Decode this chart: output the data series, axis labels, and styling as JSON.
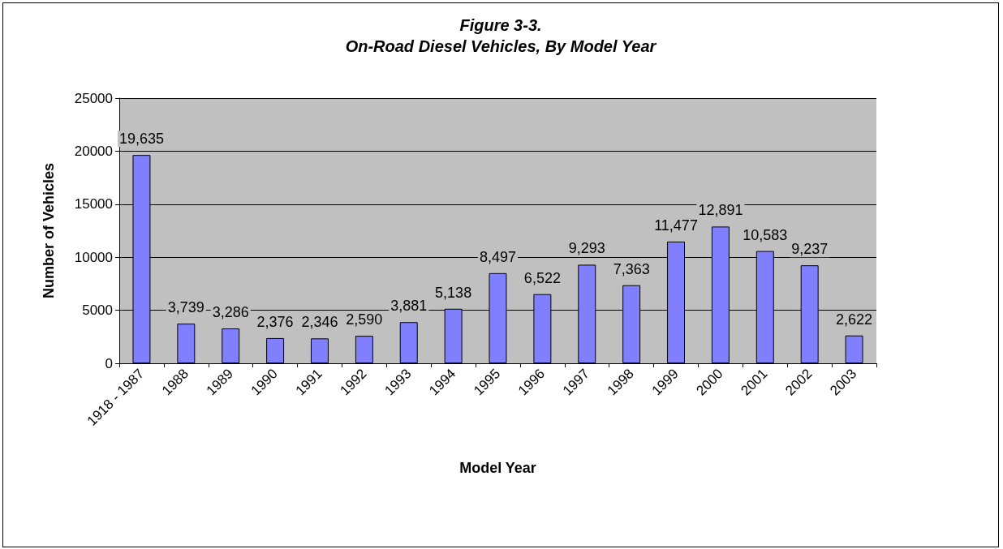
{
  "chart_data": {
    "type": "bar",
    "title": "Figure 3-3.",
    "subtitle": "On-Road Diesel Vehicles, By Model Year",
    "xlabel": "Model Year",
    "ylabel": "Number of Vehicles",
    "categories": [
      "1918 - 1987",
      "1988",
      "1989",
      "1990",
      "1991",
      "1992",
      "1993",
      "1994",
      "1995",
      "1996",
      "1997",
      "1998",
      "1999",
      "2000",
      "2001",
      "2002",
      "2003"
    ],
    "values": [
      19635,
      3739,
      3286,
      2376,
      2346,
      2590,
      3881,
      5138,
      8497,
      6522,
      9293,
      7363,
      11477,
      12891,
      10583,
      9237,
      2622
    ],
    "value_labels": [
      "19,635",
      "3,739",
      "3,286",
      "2,376",
      "2,346",
      "2,590",
      "3,881",
      "5,138",
      "8,497",
      "6,522",
      "9,293",
      "7,363",
      "11,477",
      "12,891",
      "10,583",
      "9,237",
      "2,622"
    ],
    "color": "#8080ff",
    "ylim": [
      0,
      25000
    ],
    "yticks": [
      0,
      5000,
      10000,
      15000,
      20000,
      25000
    ],
    "grid": "y"
  }
}
